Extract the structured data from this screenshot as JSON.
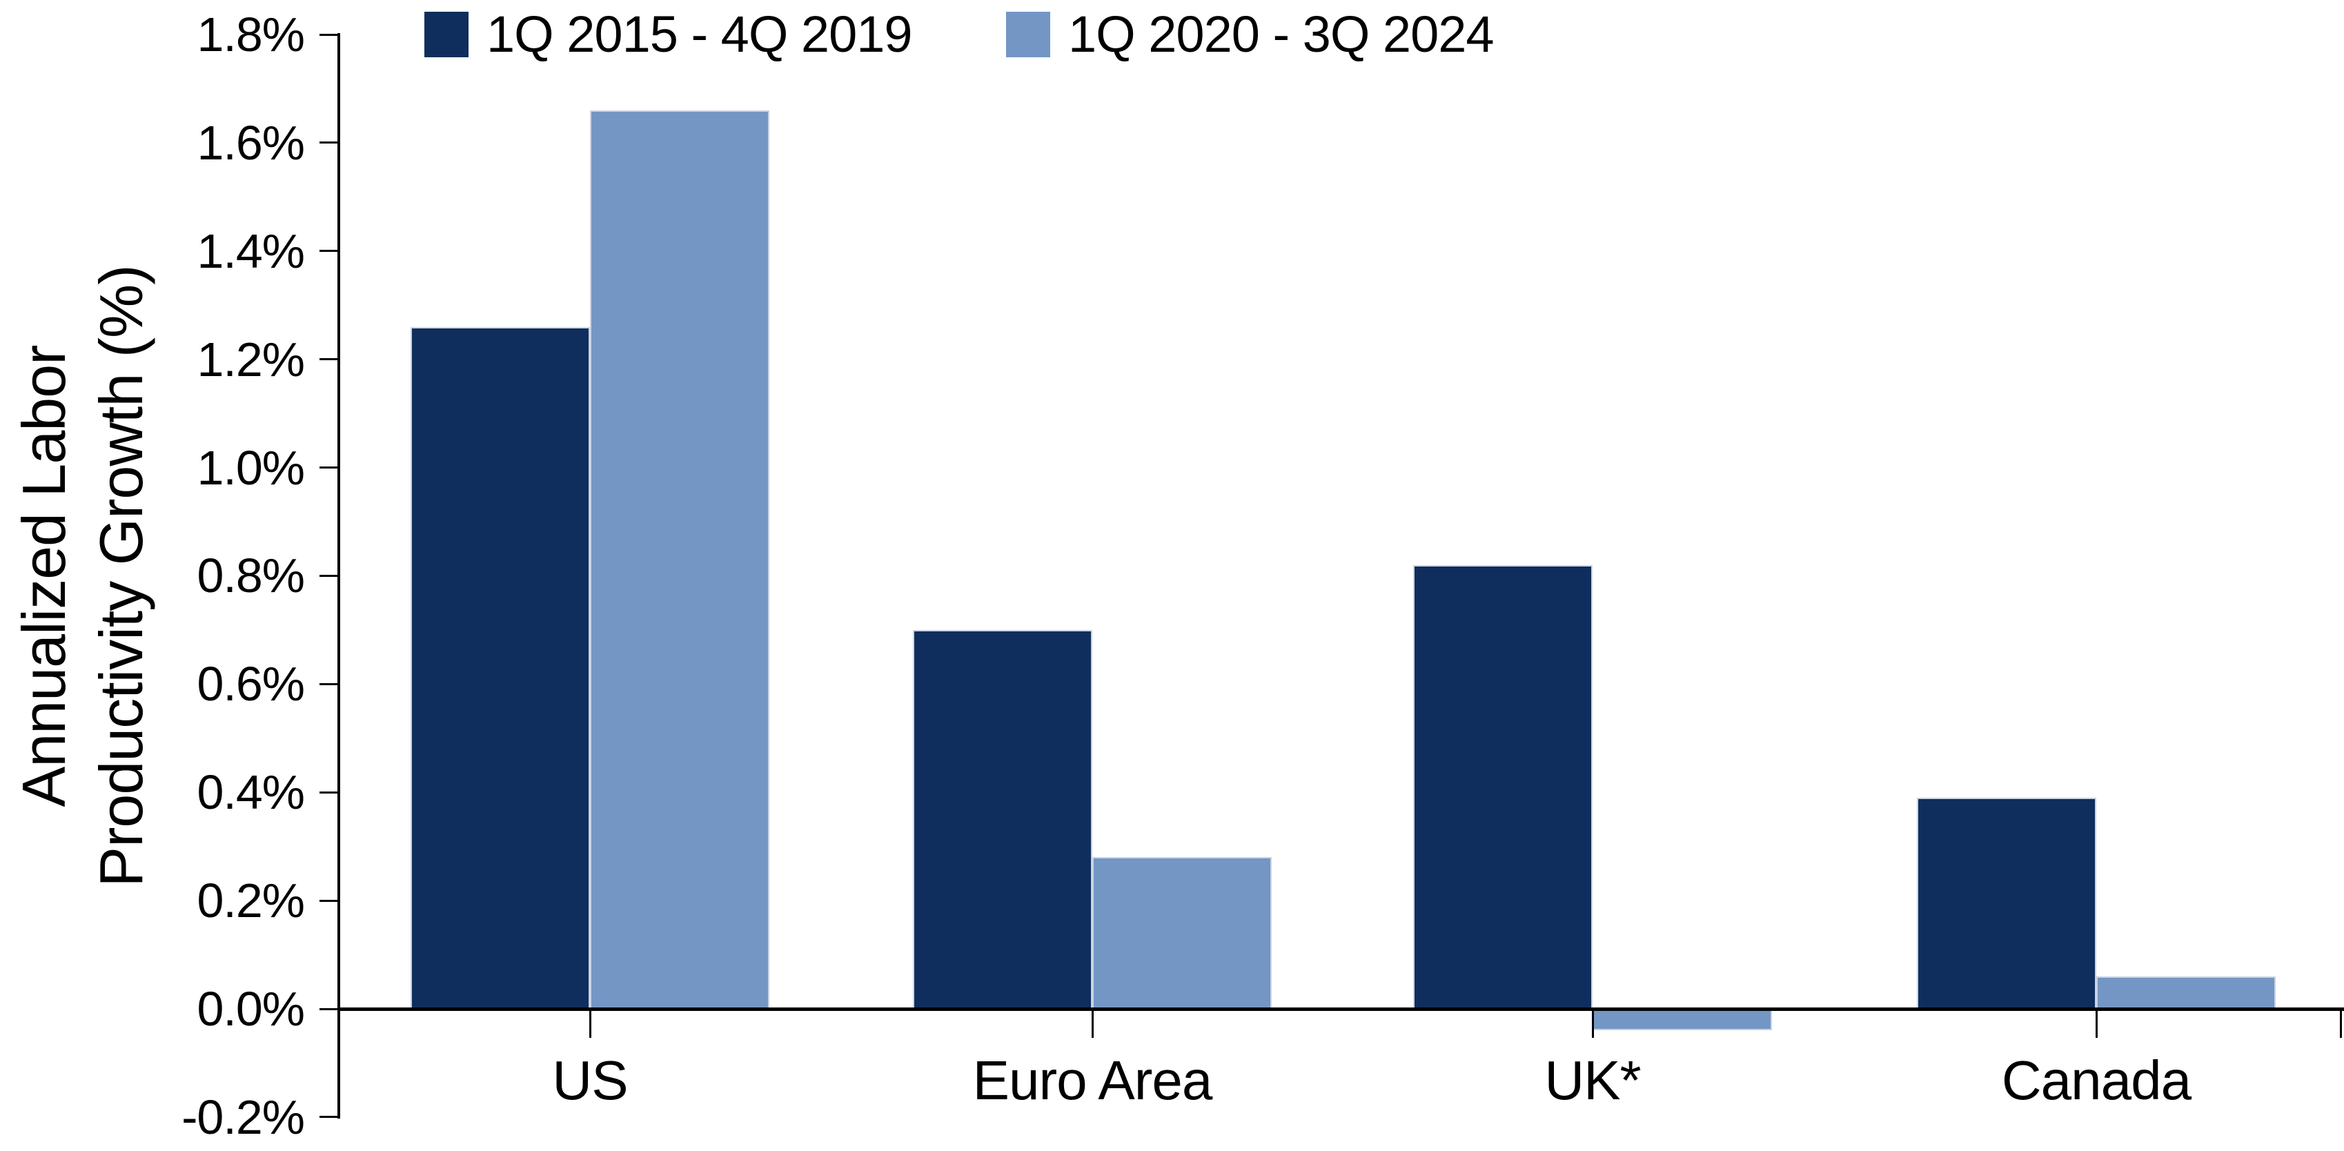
{
  "chart_data": {
    "type": "bar",
    "title": "",
    "ylabel_lines": [
      "Annualized Labor",
      "Productivity Growth (%)"
    ],
    "categories": [
      "US",
      "Euro Area",
      "UK*",
      "Canada"
    ],
    "series": [
      {
        "name": "1Q 2015 - 4Q 2019",
        "color": "#0f2e5d",
        "values": [
          1.26,
          0.7,
          0.82,
          0.39
        ]
      },
      {
        "name": "1Q 2020 - 3Q 2024",
        "color": "#7396c5",
        "values": [
          1.66,
          0.28,
          -0.04,
          0.06
        ]
      }
    ],
    "ylim": [
      -0.2,
      1.8
    ],
    "ytick_step": 0.2,
    "ytick_labels": [
      "1.8%",
      "1.6%",
      "1.4%",
      "1.2%",
      "1.0%",
      "0.8%",
      "0.6%",
      "0.4%",
      "0.2%",
      "0.0%",
      "-0.2%"
    ],
    "legend_position": "top",
    "grid": false,
    "axis_color": "#000000",
    "background_color": "#ffffff"
  }
}
